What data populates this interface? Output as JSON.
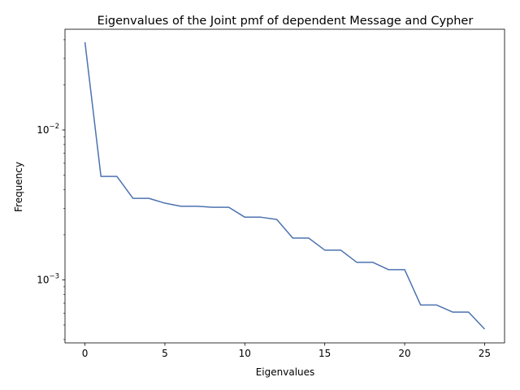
{
  "chart_data": {
    "type": "line",
    "title": "Eigenvalues of the Joint pmf of dependent Message and Cypher",
    "xlabel": "Eigenvalues",
    "ylabel": "Frequency",
    "y_scale": "log",
    "x_ticks": [
      "0",
      "5",
      "10",
      "15",
      "20",
      "25"
    ],
    "x_tick_values": [
      0,
      5,
      10,
      15,
      20,
      25
    ],
    "y_major_ticks": [
      {
        "value": 0.01,
        "base": "10",
        "exponent": "−2"
      },
      {
        "value": 0.001,
        "base": "10",
        "exponent": "−3"
      }
    ],
    "y_minor_ticks": [
      0.0004,
      0.0005,
      0.0006,
      0.0007,
      0.0008,
      0.0009,
      0.002,
      0.003,
      0.004,
      0.005,
      0.006,
      0.007,
      0.008,
      0.009,
      0.02,
      0.03,
      0.04
    ],
    "xlim": [
      -1.25,
      26.25
    ],
    "ylim": [
      0.00038,
      0.047
    ],
    "grid": false,
    "line_color": "#4c72b0",
    "series": [
      {
        "x": [
          0,
          1,
          2,
          3,
          4,
          5,
          6,
          7,
          8,
          9,
          10,
          11,
          12,
          13,
          14,
          15,
          16,
          17,
          18,
          19,
          20,
          21,
          22,
          23,
          24,
          25
        ],
        "y": [
          0.0385,
          0.0049,
          0.0049,
          0.0035,
          0.0035,
          0.00325,
          0.0031,
          0.0031,
          0.00305,
          0.00305,
          0.00262,
          0.00262,
          0.00253,
          0.0019,
          0.0019,
          0.00158,
          0.00158,
          0.00131,
          0.00131,
          0.00117,
          0.00117,
          0.00068,
          0.00068,
          0.00061,
          0.00061,
          0.00047
        ]
      }
    ]
  }
}
